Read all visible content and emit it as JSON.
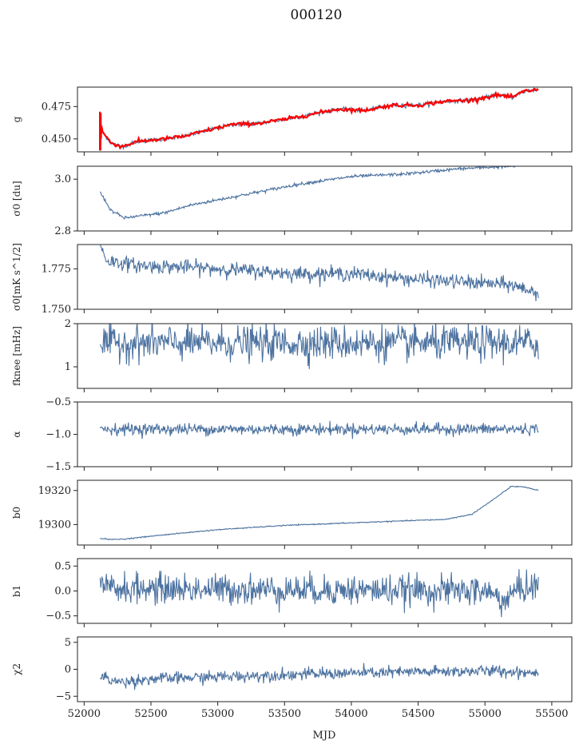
{
  "figure": {
    "title": "000120",
    "xlabel": "MJD"
  },
  "chart_data": {
    "type": "line",
    "xlim": [
      51950,
      55650
    ],
    "x_ticks": [
      52000,
      52500,
      53000,
      53500,
      54000,
      54500,
      55000,
      55500
    ],
    "x_tick_labels": [
      "52000",
      "52500",
      "53000",
      "53500",
      "54000",
      "54500",
      "55000",
      "55500"
    ],
    "x_range_data": [
      52120,
      55400
    ],
    "line_color": "#4c72a0",
    "model_color": "#ff0000",
    "panels": [
      {
        "id": "g",
        "ylabel": "g",
        "ylim": [
          0.44,
          0.49
        ],
        "yticks": [
          0.45,
          0.475
        ],
        "ytick_labels": [
          "0.450",
          "0.475"
        ],
        "noise": 0.0008,
        "overlay_red": true,
        "trend": [
          [
            52120,
            0.465
          ],
          [
            52140,
            0.455
          ],
          [
            52200,
            0.447
          ],
          [
            52280,
            0.444
          ],
          [
            52400,
            0.448
          ],
          [
            52600,
            0.45
          ],
          [
            52750,
            0.452
          ],
          [
            52900,
            0.456
          ],
          [
            53100,
            0.461
          ],
          [
            53300,
            0.462
          ],
          [
            53500,
            0.465
          ],
          [
            53700,
            0.469
          ],
          [
            53900,
            0.473
          ],
          [
            54100,
            0.472
          ],
          [
            54300,
            0.476
          ],
          [
            54500,
            0.476
          ],
          [
            54700,
            0.479
          ],
          [
            54900,
            0.48
          ],
          [
            55100,
            0.484
          ],
          [
            55200,
            0.482
          ],
          [
            55300,
            0.487
          ],
          [
            55400,
            0.488
          ]
        ]
      },
      {
        "id": "sigma0",
        "ylabel": "σ0 [du]",
        "ylim": [
          2.8,
          3.05
        ],
        "yticks": [
          2.8,
          3.0
        ],
        "ytick_labels": [
          "2.8",
          "3.0"
        ],
        "noise": 0.003,
        "trend": [
          [
            52120,
            2.95
          ],
          [
            52200,
            2.88
          ],
          [
            52300,
            2.85
          ],
          [
            52600,
            2.87
          ],
          [
            52800,
            2.9
          ],
          [
            53200,
            2.94
          ],
          [
            53600,
            2.98
          ],
          [
            54000,
            3.01
          ],
          [
            54400,
            3.02
          ],
          [
            54800,
            3.04
          ],
          [
            55200,
            3.05
          ],
          [
            55400,
            3.06
          ]
        ]
      },
      {
        "id": "sigma0_white",
        "ylabel": "σ0[mK s^1/2]",
        "ylim": [
          1.75,
          1.79
        ],
        "yticks": [
          1.75,
          1.775
        ],
        "ytick_labels": [
          "1.750",
          "1.775"
        ],
        "noise": 0.0022,
        "trend": [
          [
            52120,
            1.79
          ],
          [
            52170,
            1.78
          ],
          [
            52400,
            1.777
          ],
          [
            52800,
            1.776
          ],
          [
            53200,
            1.774
          ],
          [
            53600,
            1.772
          ],
          [
            54000,
            1.772
          ],
          [
            54400,
            1.769
          ],
          [
            54800,
            1.767
          ],
          [
            55200,
            1.765
          ],
          [
            55400,
            1.76
          ]
        ]
      },
      {
        "id": "fknee",
        "ylabel": "fknee [mHz]",
        "ylim": [
          0.5,
          2.0
        ],
        "yticks": [
          1,
          2
        ],
        "ytick_labels": [
          "1",
          "2"
        ],
        "noise": 0.2,
        "trend": [
          [
            52120,
            1.55
          ],
          [
            55400,
            1.55
          ]
        ]
      },
      {
        "id": "alpha",
        "ylabel": "α",
        "ylim": [
          -1.5,
          -0.5
        ],
        "yticks": [
          -1.5,
          -1.0,
          -0.5
        ],
        "ytick_labels": [
          "−1.5",
          "−1.0",
          "−0.5"
        ],
        "noise": 0.045,
        "trend": [
          [
            52120,
            -0.92
          ],
          [
            55400,
            -0.92
          ]
        ]
      },
      {
        "id": "b0",
        "ylabel": "b0",
        "ylim": [
          19288,
          19326
        ],
        "yticks": [
          19300,
          19320
        ],
        "ytick_labels": [
          "19300",
          "19320"
        ],
        "noise": 0.15,
        "trend": [
          [
            52120,
            19292
          ],
          [
            52200,
            19291.2
          ],
          [
            52300,
            19291.5
          ],
          [
            52600,
            19294
          ],
          [
            53000,
            19297
          ],
          [
            53500,
            19299.5
          ],
          [
            54000,
            19301
          ],
          [
            54500,
            19302.5
          ],
          [
            54700,
            19303
          ],
          [
            54900,
            19306
          ],
          [
            55050,
            19314
          ],
          [
            55200,
            19322.5
          ],
          [
            55300,
            19322
          ],
          [
            55400,
            19320
          ]
        ]
      },
      {
        "id": "b1",
        "ylabel": "b1",
        "ylim": [
          -0.65,
          0.65
        ],
        "yticks": [
          -0.5,
          0.0,
          0.5
        ],
        "ytick_labels": [
          "−0.5",
          "0.0",
          "0.5"
        ],
        "noise": 0.15,
        "trend": [
          [
            52120,
            0.05
          ],
          [
            55000,
            0.0
          ],
          [
            55150,
            -0.2
          ],
          [
            55250,
            0.05
          ],
          [
            55400,
            0.1
          ]
        ]
      },
      {
        "id": "chi2",
        "ylabel": "χ2",
        "ylim": [
          -6,
          6
        ],
        "yticks": [
          -5,
          0,
          5
        ],
        "ytick_labels": [
          "−5",
          "0",
          "5"
        ],
        "noise": 0.55,
        "trend": [
          [
            52120,
            -1.2
          ],
          [
            52250,
            -2.4
          ],
          [
            52500,
            -1.8
          ],
          [
            53000,
            -1.4
          ],
          [
            53500,
            -1.0
          ],
          [
            54000,
            -0.7
          ],
          [
            54500,
            -0.5
          ],
          [
            55000,
            -0.3
          ],
          [
            55400,
            -0.6
          ]
        ]
      }
    ]
  }
}
